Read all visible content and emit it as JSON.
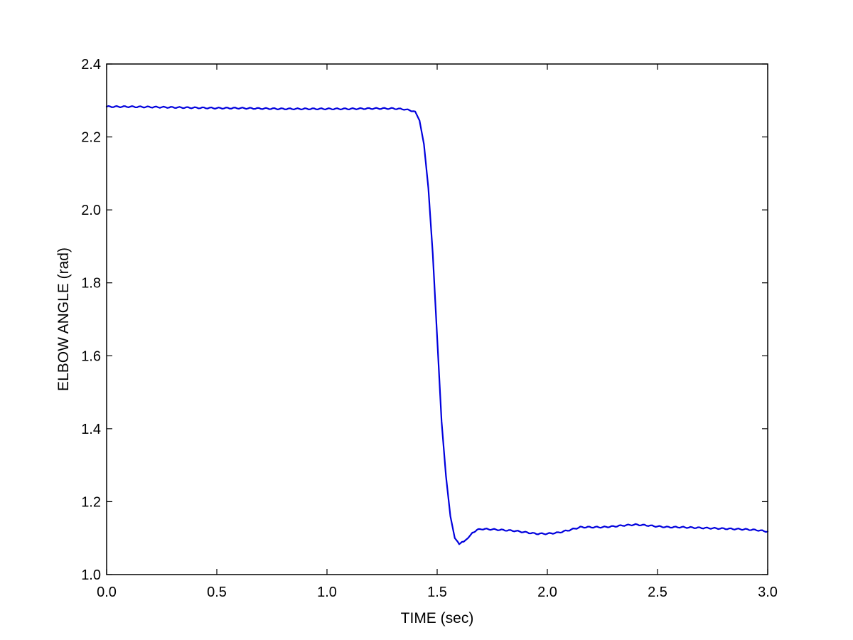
{
  "chart_data": {
    "type": "line",
    "title": "",
    "xlabel": "TIME (sec)",
    "ylabel": "ELBOW ANGLE (rad)",
    "xlim": [
      0.0,
      3.0
    ],
    "ylim": [
      1.0,
      2.4
    ],
    "xticks": [
      0.0,
      0.5,
      1.0,
      1.5,
      2.0,
      2.5,
      3.0
    ],
    "xtick_labels": [
      "0.0",
      "0.5",
      "1.0",
      "1.5",
      "2.0",
      "2.5",
      "3.0"
    ],
    "yticks": [
      1.0,
      1.2,
      1.4,
      1.6,
      1.8,
      2.0,
      2.2,
      2.4
    ],
    "ytick_labels": [
      "1.0",
      "1.2",
      "1.4",
      "1.6",
      "1.8",
      "2.0",
      "2.2",
      "2.4"
    ],
    "grid": false,
    "line_color": "#0000dd",
    "series": [
      {
        "x": [
          0.0,
          0.1,
          0.2,
          0.3,
          0.4,
          0.5,
          0.6,
          0.7,
          0.8,
          0.9,
          1.0,
          1.1,
          1.2,
          1.3,
          1.35,
          1.4,
          1.42,
          1.44,
          1.46,
          1.48,
          1.5,
          1.52,
          1.54,
          1.56,
          1.58,
          1.6,
          1.62,
          1.64,
          1.66,
          1.68,
          1.7,
          1.75,
          1.8,
          1.85,
          1.9,
          1.95,
          2.0,
          2.05,
          2.1,
          2.15,
          2.2,
          2.25,
          2.3,
          2.35,
          2.4,
          2.45,
          2.5,
          2.55,
          2.6,
          2.65,
          2.7,
          2.75,
          2.8,
          2.85,
          2.9,
          2.95,
          3.0
        ],
        "y": [
          2.283,
          2.283,
          2.282,
          2.281,
          2.28,
          2.279,
          2.279,
          2.278,
          2.277,
          2.277,
          2.277,
          2.277,
          2.278,
          2.278,
          2.276,
          2.27,
          2.245,
          2.18,
          2.06,
          1.88,
          1.65,
          1.42,
          1.27,
          1.16,
          1.1,
          1.085,
          1.09,
          1.1,
          1.115,
          1.122,
          1.125,
          1.124,
          1.122,
          1.12,
          1.116,
          1.112,
          1.112,
          1.115,
          1.122,
          1.13,
          1.13,
          1.13,
          1.132,
          1.135,
          1.137,
          1.135,
          1.132,
          1.13,
          1.13,
          1.129,
          1.128,
          1.127,
          1.126,
          1.125,
          1.124,
          1.122,
          1.118
        ]
      }
    ]
  }
}
